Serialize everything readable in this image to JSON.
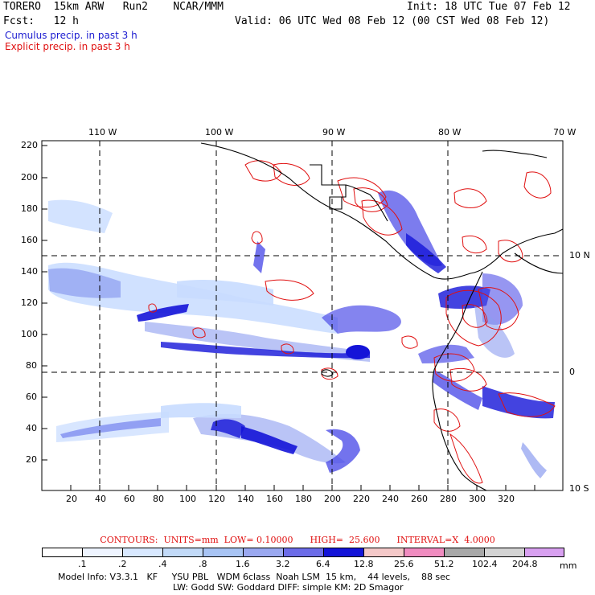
{
  "header": {
    "model_line": "TORERO  15km ARW   Run2    NCAR/MMM",
    "init": "Init: 18 UTC Tue 07 Feb 12",
    "fcst": "Fcst:   12 h",
    "valid": "Valid: 06 UTC Wed 08 Feb 12 (00 CST Wed 08 Feb 12)",
    "cumulus": "Cumulus precip. in past 3 h",
    "explicit": "Explicit precip. in past 3 h"
  },
  "map": {
    "top_lon_labels": [
      "110 W",
      "100 W",
      "90 W",
      "80 W",
      "70 W"
    ],
    "y_ticks": [
      "220",
      "200",
      "180",
      "160",
      "140",
      "120",
      "100",
      "80",
      "60",
      "40",
      "20"
    ],
    "x_ticks": [
      "20",
      "40",
      "60",
      "80",
      "100",
      "120",
      "140",
      "160",
      "180",
      "200",
      "220",
      "240",
      "260",
      "280",
      "300",
      "320"
    ],
    "right_lat_labels": [
      "10 N",
      "0",
      "10 S"
    ],
    "colors": {
      "coast": "#000000",
      "cumulus_light": "#c8dcff",
      "cumulus_mid": "#8c9cf0",
      "cumulus_heavy": "#5050e8",
      "cumulus_max": "#1414d8",
      "explicit": "#e01010"
    }
  },
  "contours": {
    "label": "CONTOURS:  UNITS=mm  LOW= 0.10000      HIGH=  25.600      INTERVAL=X  4.0000"
  },
  "colorbar": {
    "labels": [
      ".1",
      ".2",
      ".4",
      ".8",
      "1.6",
      "3.2",
      "6.4",
      "12.8",
      "25.6",
      "51.2",
      "102.4",
      "204.8"
    ],
    "unit": "mm",
    "colors": [
      "#ffffff",
      "#eef4ff",
      "#d8e8ff",
      "#c2daf8",
      "#a8c4f4",
      "#9aa8f0",
      "#6c6ce8",
      "#1414d8",
      "#f4c8c8",
      "#f08cc0",
      "#a8a8a8",
      "#d4d4d4",
      "#d8a0f0"
    ]
  },
  "footer": {
    "line1": "Model Info: V3.3.1   KF     YSU PBL   WDM 6class  Noah LSM  15 km,    44 levels,    88 sec",
    "line2": "LW: Godd SW: Goddard DIFF: simple KM: 2D Smagor"
  }
}
